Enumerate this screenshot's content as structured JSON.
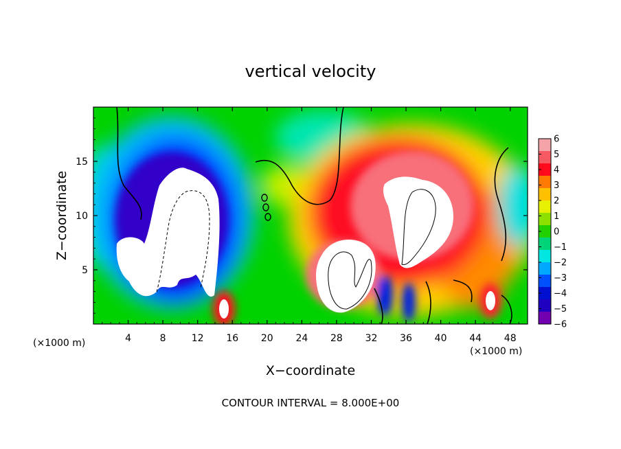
{
  "chart_data": {
    "type": "heatmap",
    "title": "vertical velocity",
    "xlabel": "X−coordinate",
    "ylabel": "Z−coordinate",
    "x_units_label": "(×1000 m)",
    "x_units_label_right": "(×1000 m)",
    "xlim": [
      0,
      50
    ],
    "ylim": [
      0,
      20
    ],
    "x_ticks": [
      4,
      8,
      12,
      16,
      20,
      24,
      28,
      32,
      36,
      40,
      44,
      48
    ],
    "y_ticks": [
      5,
      10,
      15
    ],
    "colorbar": {
      "range": [
        -6,
        6
      ],
      "ticks": [
        "6",
        "5",
        "4",
        "3",
        "2",
        "1",
        "0",
        "−1",
        "−2",
        "−3",
        "−4",
        "−5",
        "−6"
      ],
      "colors": [
        "#f4a3a8",
        "#f85a63",
        "#ff0a1c",
        "#ff7a00",
        "#ffc000",
        "#e6f000",
        "#8ee000",
        "#22d000",
        "#00d47a",
        "#00e6e0",
        "#00a8ff",
        "#0050ff",
        "#0010d0",
        "#2000c0",
        "#7000b0"
      ]
    },
    "features": [
      {
        "type": "updraft",
        "x": 36,
        "z": 11,
        "peak": 6
      },
      {
        "type": "updraft",
        "x": 29,
        "z": 4.5,
        "peak": 6
      },
      {
        "type": "updraft",
        "x": 44,
        "z": 6,
        "peak": 4
      },
      {
        "type": "updraft",
        "x": 15,
        "z": 1.5,
        "peak": 6
      },
      {
        "type": "downdraft",
        "x": 10,
        "z": 9,
        "peak": -6
      },
      {
        "type": "downdraft",
        "x": 5,
        "z": 5,
        "peak": -6
      }
    ],
    "note": "CONTOUR INTERVAL = 8.000E+00"
  }
}
